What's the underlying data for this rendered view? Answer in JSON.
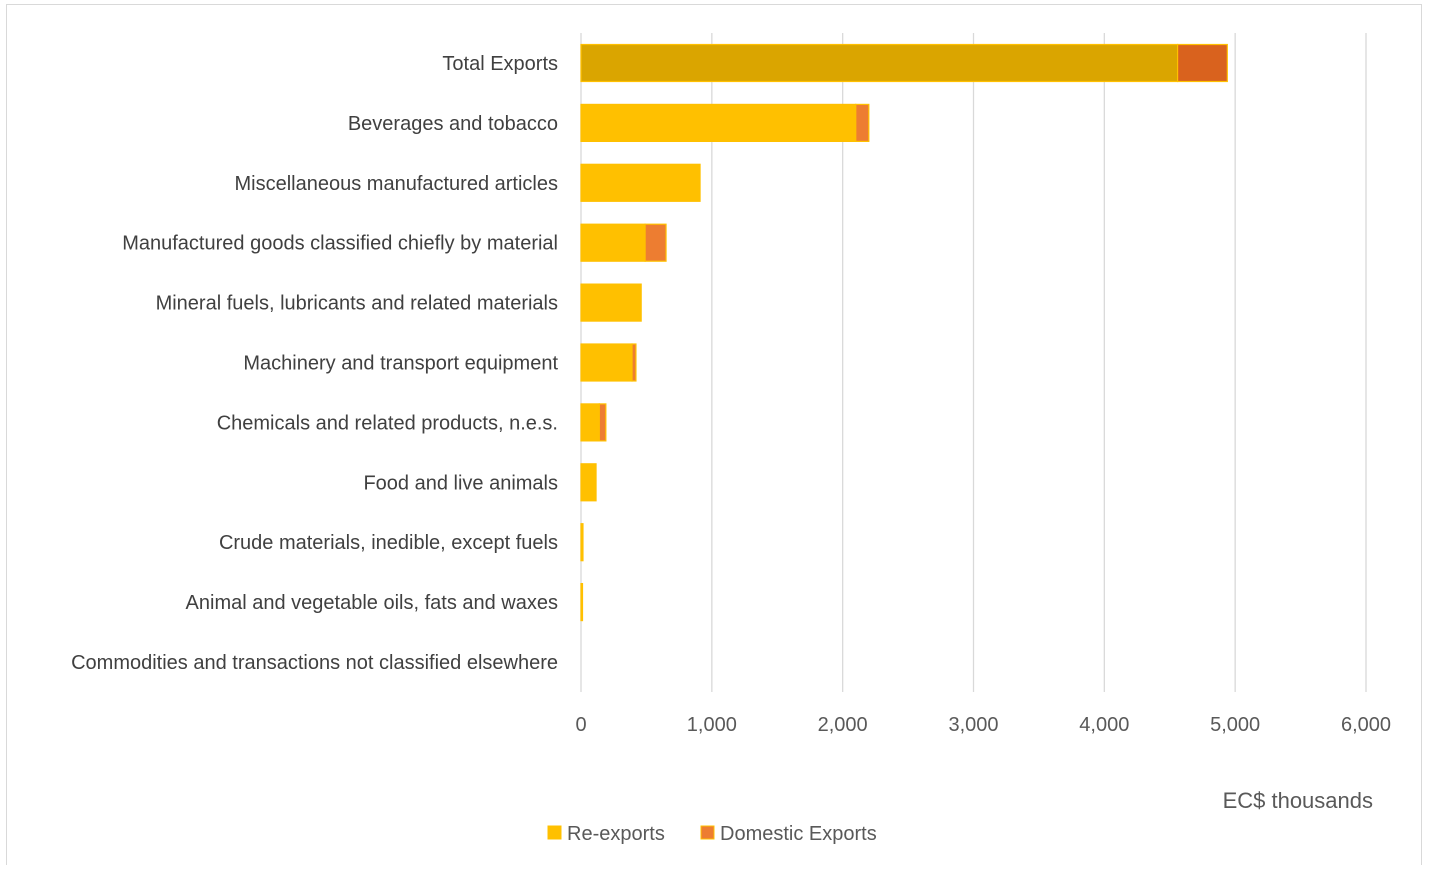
{
  "chart_data": {
    "type": "bar",
    "orientation": "horizontal",
    "stacked": true,
    "categories": [
      "Total Exports",
      "Beverages and tobacco",
      "Miscellaneous manufactured articles",
      "Manufactured goods classified chiefly by material",
      "Mineral fuels, lubricants and related materials",
      "Machinery and transport equipment",
      "Chemicals and related products, n.e.s.",
      "Food and live animals",
      "Crude materials, inedible, except fuels",
      "Animal and vegetable oils, fats and waxes",
      "Commodities and transactions not classified elsewhere"
    ],
    "series": [
      {
        "name": "Re-exports",
        "color": "#FFC000",
        "values": [
          4560,
          2100,
          910,
          490,
          460,
          390,
          140,
          115,
          15,
          10,
          0
        ]
      },
      {
        "name": "Domestic Exports",
        "color": "#ED7D31",
        "values": [
          380,
          100,
          0,
          160,
          0,
          30,
          50,
          0,
          0,
          0,
          0
        ]
      }
    ],
    "highlight": {
      "category_index": 0,
      "colors": [
        "#DAA500",
        "#D9621E"
      ]
    },
    "xlim": [
      0,
      6000
    ],
    "xticks": [
      0,
      1000,
      2000,
      3000,
      4000,
      5000,
      6000
    ],
    "xtick_labels": [
      "0",
      "1,000",
      "2,000",
      "3,000",
      "4,000",
      "5,000",
      "6,000"
    ],
    "xlabel": "EC$ thousands",
    "grid": true,
    "legend_position": "bottom"
  }
}
